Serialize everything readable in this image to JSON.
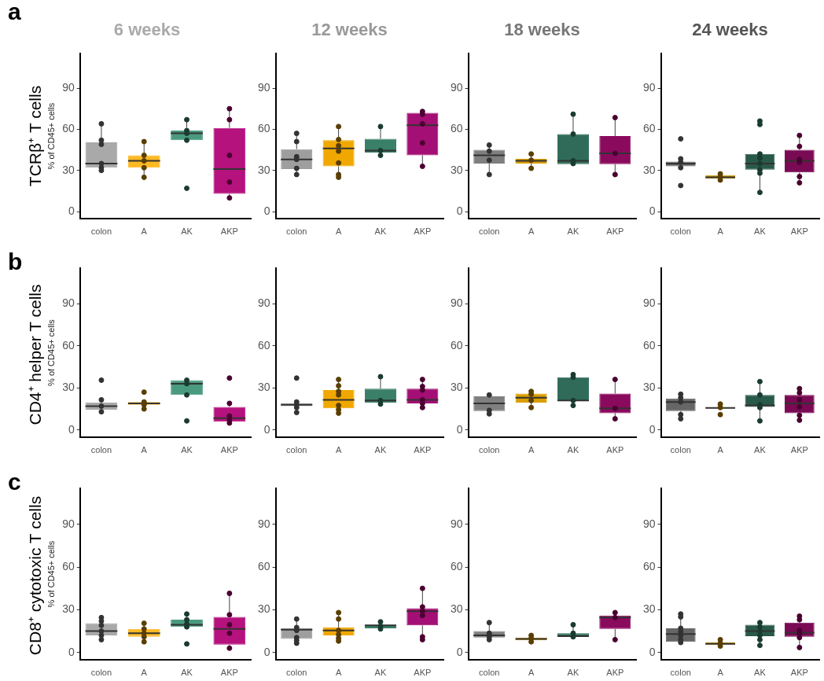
{
  "chart_data": [
    {
      "type": "box",
      "title": "6 weeks",
      "ylabel": "% of CD45+ cells",
      "annotations": [
        "a",
        "TCRβ⁺ T cells"
      ],
      "categories": [
        "colon",
        "A",
        "AK",
        "AKP"
      ],
      "colors": [
        "#a9a9a9",
        "#fdb924",
        "#4a9a80",
        "#b5127e"
      ],
      "ylim": [
        -5,
        115
      ],
      "yticks": [
        0,
        30,
        60,
        90
      ],
      "boxes": [
        {
          "low": 30,
          "q1": 32,
          "median": 35,
          "q3": 50.5,
          "high": 64
        },
        {
          "low": 25.5,
          "q1": 32,
          "median": 37,
          "q3": 41,
          "high": 51
        },
        {
          "low": 52,
          "q1": 52,
          "median": 57,
          "q3": 59,
          "high": 67
        },
        {
          "low": 10,
          "q1": 13,
          "median": 31,
          "q3": 61,
          "high": 75
        }
      ],
      "series": [
        {
          "type": "scatter",
          "color": "#333333",
          "x": [
            "colon",
            "colon",
            "colon",
            "colon",
            "colon",
            "colon"
          ],
          "values": [
            64,
            52,
            49,
            35,
            32,
            30
          ]
        },
        {
          "type": "scatter",
          "color": "#5a3e00",
          "x": [
            "A",
            "A",
            "A",
            "A",
            "A"
          ],
          "values": [
            51,
            41,
            37,
            32,
            25
          ]
        },
        {
          "type": "scatter",
          "color": "#1a3b30",
          "x": [
            "AK",
            "AK",
            "AK",
            "AK",
            "AK"
          ],
          "values": [
            67,
            59,
            57,
            52,
            17
          ]
        },
        {
          "type": "scatter",
          "color": "#4a0030",
          "x": [
            "AKP",
            "AKP",
            "AKP",
            "AKP",
            "AKP"
          ],
          "values": [
            75,
            67,
            41,
            21.5,
            10
          ]
        }
      ]
    },
    {
      "type": "box",
      "title": "12 weeks",
      "categories": [
        "colon",
        "A",
        "AK",
        "AKP"
      ],
      "colors": [
        "#9e9e9e",
        "#f0a800",
        "#3a7f68",
        "#a30f74"
      ],
      "ylim": [
        -5,
        115
      ],
      "yticks": [
        0,
        30,
        60,
        90
      ],
      "boxes": [
        {
          "low": 28,
          "q1": 31,
          "median": 38,
          "q3": 45.5,
          "high": 57
        },
        {
          "low": 25,
          "q1": 33,
          "median": 46,
          "q3": 52,
          "high": 62
        },
        {
          "low": 41,
          "q1": 43,
          "median": 44.5,
          "q3": 53,
          "high": 62
        },
        {
          "low": 33,
          "q1": 41,
          "median": 63,
          "q3": 72,
          "high": 73
        }
      ],
      "series": [
        {
          "type": "scatter",
          "color": "#333333",
          "x": [
            "colon",
            "colon",
            "colon",
            "colon",
            "colon",
            "colon"
          ],
          "values": [
            57,
            51,
            40,
            38,
            31.5,
            27
          ]
        },
        {
          "type": "scatter",
          "color": "#5a3e00",
          "x": [
            "A",
            "A",
            "A",
            "A",
            "A",
            "A",
            "A"
          ],
          "values": [
            62,
            52.5,
            48,
            44,
            35.5,
            27,
            25
          ]
        },
        {
          "type": "scatter",
          "color": "#1a3b30",
          "x": [
            "AK",
            "AK",
            "AK"
          ],
          "values": [
            62,
            44.5,
            41
          ]
        },
        {
          "type": "scatter",
          "color": "#4a0030",
          "x": [
            "AKP",
            "AKP",
            "AKP",
            "AKP",
            "AKP"
          ],
          "values": [
            73,
            71,
            64,
            50,
            33
          ]
        }
      ]
    },
    {
      "type": "box",
      "title": "18 weeks",
      "categories": [
        "colon",
        "A",
        "AK",
        "AKP"
      ],
      "colors": [
        "#7f7f7f",
        "#d99e00",
        "#2f6b58",
        "#8a0a5e"
      ],
      "ylim": [
        -5,
        115
      ],
      "yticks": [
        0,
        30,
        60,
        90
      ],
      "boxes": [
        {
          "low": 27,
          "q1": 35,
          "median": 41,
          "q3": 45,
          "high": 48
        },
        {
          "low": 32,
          "q1": 35,
          "median": 37,
          "q3": 38.5,
          "high": 42
        },
        {
          "low": 34.5,
          "q1": 34.5,
          "median": 37,
          "q3": 56.5,
          "high": 71
        },
        {
          "low": 27,
          "q1": 34.5,
          "median": 42.5,
          "q3": 55,
          "high": 68
        }
      ],
      "series": [
        {
          "type": "scatter",
          "color": "#333333",
          "x": [
            "colon",
            "colon",
            "colon",
            "colon"
          ],
          "values": [
            48.5,
            44,
            37.5,
            27
          ]
        },
        {
          "type": "scatter",
          "color": "#5a3e00",
          "x": [
            "A",
            "A",
            "A"
          ],
          "values": [
            42,
            37.5,
            31.5
          ]
        },
        {
          "type": "scatter",
          "color": "#1a3b30",
          "x": [
            "AK",
            "AK",
            "AK",
            "AK"
          ],
          "values": [
            71,
            56.5,
            37,
            35
          ]
        },
        {
          "type": "scatter",
          "color": "#4a0030",
          "x": [
            "AKP",
            "AKP",
            "AKP"
          ],
          "values": [
            68.5,
            42.5,
            27
          ]
        }
      ]
    },
    {
      "type": "box",
      "title": "24 weeks",
      "categories": [
        "colon",
        "A",
        "AK",
        "AKP"
      ],
      "colors": [
        "#666666",
        "#c79400",
        "#29594a",
        "#7a0a54"
      ],
      "ylim": [
        -5,
        115
      ],
      "yticks": [
        0,
        30,
        60,
        90
      ],
      "boxes": [
        {
          "low": 32,
          "q1": 33,
          "median": 35,
          "q3": 36.5,
          "high": 39
        },
        {
          "low": 23,
          "q1": 24,
          "median": 25,
          "q3": 26.5,
          "high": 28
        },
        {
          "low": 14,
          "q1": 30.5,
          "median": 35,
          "q3": 42,
          "high": 42
        },
        {
          "low": 21,
          "q1": 28.5,
          "median": 37,
          "q3": 45,
          "high": 55.5
        }
      ],
      "series": [
        {
          "type": "scatter",
          "color": "#333333",
          "x": [
            "colon",
            "colon",
            "colon",
            "colon",
            "colon"
          ],
          "values": [
            53,
            38.5,
            36,
            32,
            19
          ]
        },
        {
          "type": "scatter",
          "color": "#5a3e00",
          "x": [
            "A",
            "A",
            "A"
          ],
          "values": [
            27.5,
            25.5,
            23
          ]
        },
        {
          "type": "scatter",
          "color": "#1a3b30",
          "x": [
            "AK",
            "AK",
            "AK",
            "AK",
            "AK",
            "AK",
            "AK",
            "AK"
          ],
          "values": [
            66,
            63.5,
            42,
            39,
            35,
            30.5,
            28,
            14
          ]
        },
        {
          "type": "scatter",
          "color": "#4a0030",
          "x": [
            "AKP",
            "AKP",
            "AKP",
            "AKP",
            "AKP",
            "AKP"
          ],
          "values": [
            55.5,
            47.5,
            36,
            38,
            25.5,
            21
          ]
        }
      ]
    },
    {
      "type": "box",
      "ylabel": "% of CD45+ cells",
      "annotations": [
        "b",
        "CD4⁺ helper T cells"
      ],
      "categories": [
        "colon",
        "A",
        "AK",
        "AKP"
      ],
      "colors": [
        "#a9a9a9",
        "#fdb924",
        "#4a9a80",
        "#b5127e"
      ],
      "ylim": [
        -5,
        115
      ],
      "yticks": [
        0,
        30,
        60,
        90
      ],
      "boxes": [
        {
          "low": 13,
          "q1": 14.5,
          "median": 17,
          "q3": 19.5,
          "high": 21
        },
        {
          "low": 18,
          "q1": 18,
          "median": 19,
          "q3": 20,
          "high": 20
        },
        {
          "low": 25,
          "q1": 25,
          "median": 33,
          "q3": 35.5,
          "high": 35.5
        },
        {
          "low": 5,
          "q1": 6,
          "median": 8.5,
          "q3": 16.5,
          "high": 19
        }
      ],
      "series": [
        {
          "type": "scatter",
          "color": "#333333",
          "x": [
            "colon",
            "colon",
            "colon",
            "colon"
          ],
          "values": [
            35.5,
            21.5,
            17,
            13
          ]
        },
        {
          "type": "scatter",
          "color": "#5a3e00",
          "x": [
            "A",
            "A",
            "A",
            "A"
          ],
          "values": [
            27,
            20,
            18,
            15
          ]
        },
        {
          "type": "scatter",
          "color": "#1a3b30",
          "x": [
            "AK",
            "AK",
            "AK",
            "AK"
          ],
          "values": [
            35.5,
            33,
            25,
            6.5
          ]
        },
        {
          "type": "scatter",
          "color": "#4a0030",
          "x": [
            "AKP",
            "AKP",
            "AKP",
            "AKP",
            "AKP"
          ],
          "values": [
            37,
            19,
            10,
            7,
            5
          ]
        }
      ]
    },
    {
      "type": "box",
      "categories": [
        "colon",
        "A",
        "AK",
        "AKP"
      ],
      "colors": [
        "#9e9e9e",
        "#f0a800",
        "#3a7f68",
        "#a30f74"
      ],
      "ylim": [
        -5,
        115
      ],
      "yticks": [
        0,
        30,
        60,
        90
      ],
      "boxes": [
        {
          "low": 16,
          "q1": 17,
          "median": 18,
          "q3": 19,
          "high": 19.5
        },
        {
          "low": 12,
          "q1": 15.5,
          "median": 21.5,
          "q3": 28.5,
          "high": 35
        },
        {
          "low": 18,
          "q1": 19.5,
          "median": 21,
          "q3": 29.5,
          "high": 38
        },
        {
          "low": 16,
          "q1": 19,
          "median": 21.5,
          "q3": 29.5,
          "high": 36
        }
      ],
      "series": [
        {
          "type": "scatter",
          "color": "#333333",
          "x": [
            "colon",
            "colon",
            "colon",
            "colon",
            "colon"
          ],
          "values": [
            37,
            20,
            18,
            16,
            12.5
          ]
        },
        {
          "type": "scatter",
          "color": "#5a3e00",
          "x": [
            "A",
            "A",
            "A",
            "A",
            "A",
            "A",
            "A"
          ],
          "values": [
            36,
            31.5,
            27.5,
            25,
            17.5,
            14.5,
            12
          ]
        },
        {
          "type": "scatter",
          "color": "#1a3b30",
          "x": [
            "AK",
            "AK",
            "AK"
          ],
          "values": [
            38,
            21,
            18.5
          ]
        },
        {
          "type": "scatter",
          "color": "#4a0030",
          "x": [
            "AKP",
            "AKP",
            "AKP",
            "AKP",
            "AKP",
            "AKP"
          ],
          "values": [
            36,
            31,
            28.5,
            21.5,
            19,
            16
          ]
        }
      ]
    },
    {
      "type": "box",
      "categories": [
        "colon",
        "A",
        "AK",
        "AKP"
      ],
      "colors": [
        "#7f7f7f",
        "#d99e00",
        "#2f6b58",
        "#8a0a5e"
      ],
      "ylim": [
        -5,
        115
      ],
      "yticks": [
        0,
        30,
        60,
        90
      ],
      "boxes": [
        {
          "low": 12,
          "q1": 13.5,
          "median": 19,
          "q3": 24,
          "high": 25
        },
        {
          "low": 16,
          "q1": 19.5,
          "median": 23,
          "q3": 26,
          "high": 27.5
        },
        {
          "low": 18,
          "q1": 20.5,
          "median": 21,
          "q3": 37.5,
          "high": 39
        },
        {
          "low": 8,
          "q1": 12,
          "median": 15.5,
          "q3": 26,
          "high": 36
        }
      ],
      "series": [
        {
          "type": "scatter",
          "color": "#333333",
          "x": [
            "colon",
            "colon",
            "colon"
          ],
          "values": [
            25,
            14,
            11.5
          ]
        },
        {
          "type": "scatter",
          "color": "#5a3e00",
          "x": [
            "A",
            "A",
            "A",
            "A"
          ],
          "values": [
            27.5,
            25.5,
            21,
            16
          ]
        },
        {
          "type": "scatter",
          "color": "#1a3b30",
          "x": [
            "AK",
            "AK",
            "AK",
            "AK"
          ],
          "values": [
            39.5,
            37.5,
            21,
            17.5
          ]
        },
        {
          "type": "scatter",
          "color": "#4a0030",
          "x": [
            "AKP",
            "AKP",
            "AKP"
          ],
          "values": [
            36,
            15.5,
            8
          ]
        }
      ]
    },
    {
      "type": "box",
      "categories": [
        "colon",
        "A",
        "AK",
        "AKP"
      ],
      "colors": [
        "#666666",
        "#c79400",
        "#29594a",
        "#7a0a54"
      ],
      "ylim": [
        -5,
        115
      ],
      "yticks": [
        0,
        30,
        60,
        90
      ],
      "boxes": [
        {
          "low": 8,
          "q1": 13.5,
          "median": 20,
          "q3": 22.5,
          "high": 25.5
        },
        {
          "low": 15.5,
          "q1": 15.5,
          "median": 15.7,
          "q3": 16.3,
          "high": 16.3
        },
        {
          "low": 6.5,
          "q1": 16.5,
          "median": 17.5,
          "q3": 25,
          "high": 34.5
        },
        {
          "low": 7,
          "q1": 12,
          "median": 19,
          "q3": 25,
          "high": 29
        }
      ],
      "series": [
        {
          "type": "scatter",
          "color": "#333333",
          "x": [
            "colon",
            "colon",
            "colon",
            "colon",
            "colon"
          ],
          "values": [
            25.5,
            23,
            20,
            11,
            8
          ]
        },
        {
          "type": "scatter",
          "color": "#5a3e00",
          "x": [
            "A",
            "A",
            "A"
          ],
          "values": [
            18.5,
            16,
            11
          ]
        },
        {
          "type": "scatter",
          "color": "#1a3b30",
          "x": [
            "AK",
            "AK",
            "AK",
            "AK",
            "AK"
          ],
          "values": [
            34.5,
            25,
            18,
            16,
            6.5
          ]
        },
        {
          "type": "scatter",
          "color": "#4a0030",
          "x": [
            "AKP",
            "AKP",
            "AKP",
            "AKP",
            "AKP",
            "AKP"
          ],
          "values": [
            29.5,
            26.5,
            21.5,
            16.5,
            10.5,
            7
          ]
        }
      ]
    },
    {
      "type": "box",
      "ylabel": "% of CD45+ cells",
      "annotations": [
        "c",
        "CD8⁺ cytotoxic T cells"
      ],
      "categories": [
        "colon",
        "A",
        "AK",
        "AKP"
      ],
      "colors": [
        "#a9a9a9",
        "#fdb924",
        "#4a9a80",
        "#b5127e"
      ],
      "ylim": [
        -5,
        115
      ],
      "yticks": [
        0,
        30,
        60,
        90
      ],
      "boxes": [
        {
          "low": 9,
          "q1": 12,
          "median": 15,
          "q3": 20.5,
          "high": 24.5
        },
        {
          "low": 7.5,
          "q1": 11,
          "median": 13.5,
          "q3": 16.5,
          "high": 20.5
        },
        {
          "low": 18,
          "q1": 18,
          "median": 19.5,
          "q3": 23,
          "high": 27
        },
        {
          "low": 2,
          "q1": 5.5,
          "median": 16.5,
          "q3": 25,
          "high": 42
        }
      ],
      "series": [
        {
          "type": "scatter",
          "color": "#333333",
          "x": [
            "colon",
            "colon",
            "colon",
            "colon",
            "colon",
            "colon"
          ],
          "values": [
            24.5,
            22,
            19,
            15,
            12,
            9
          ]
        },
        {
          "type": "scatter",
          "color": "#5a3e00",
          "x": [
            "A",
            "A",
            "A",
            "A",
            "A"
          ],
          "values": [
            20.5,
            16.5,
            13.5,
            11,
            7.5
          ]
        },
        {
          "type": "scatter",
          "color": "#1a3b30",
          "x": [
            "AK",
            "AK",
            "AK",
            "AK",
            "AK"
          ],
          "values": [
            27,
            23,
            20,
            18,
            6
          ]
        },
        {
          "type": "scatter",
          "color": "#4a0030",
          "x": [
            "AKP",
            "AKP",
            "AKP",
            "AKP",
            "AKP"
          ],
          "values": [
            41.5,
            26.5,
            19.5,
            13.5,
            3
          ]
        }
      ]
    },
    {
      "type": "box",
      "categories": [
        "colon",
        "A",
        "AK",
        "AKP"
      ],
      "colors": [
        "#9e9e9e",
        "#f0a800",
        "#3a7f68",
        "#a30f74"
      ],
      "ylim": [
        -5,
        115
      ],
      "yticks": [
        0,
        30,
        60,
        90
      ],
      "boxes": [
        {
          "low": 6.5,
          "q1": 9.5,
          "median": 16,
          "q3": 17,
          "high": 23.5
        },
        {
          "low": 9,
          "q1": 12,
          "median": 15.5,
          "q3": 17.5,
          "high": 28
        },
        {
          "low": 17,
          "q1": 17,
          "median": 19,
          "q3": 19.5,
          "high": 21
        },
        {
          "low": 9.5,
          "q1": 19,
          "median": 29,
          "q3": 31,
          "high": 45
        }
      ],
      "series": [
        {
          "type": "scatter",
          "color": "#333333",
          "x": [
            "colon",
            "colon",
            "colon",
            "colon",
            "colon",
            "colon"
          ],
          "values": [
            23.5,
            17.5,
            15.5,
            10.5,
            8.5,
            6.5
          ]
        },
        {
          "type": "scatter",
          "color": "#5a3e00",
          "x": [
            "A",
            "A",
            "A",
            "A",
            "A",
            "A"
          ],
          "values": [
            28,
            23.5,
            15.5,
            12.5,
            10,
            8
          ]
        },
        {
          "type": "scatter",
          "color": "#1a3b30",
          "x": [
            "AK",
            "AK",
            "AK"
          ],
          "values": [
            21.5,
            18.5,
            16.5
          ]
        },
        {
          "type": "scatter",
          "color": "#4a0030",
          "x": [
            "AKP",
            "AKP",
            "AKP",
            "AKP",
            "AKP",
            "AKP"
          ],
          "values": [
            45,
            32,
            29,
            26,
            11,
            9
          ]
        }
      ]
    },
    {
      "type": "box",
      "categories": [
        "colon",
        "A",
        "AK",
        "AKP"
      ],
      "colors": [
        "#7f7f7f",
        "#d99e00",
        "#2f6b58",
        "#8a0a5e"
      ],
      "ylim": [
        -5,
        115
      ],
      "yticks": [
        0,
        30,
        60,
        90
      ],
      "boxes": [
        {
          "low": 9.5,
          "q1": 10.5,
          "median": 12,
          "q3": 15,
          "high": 21
        },
        {
          "low": 7.5,
          "q1": 8.5,
          "median": 9.5,
          "q3": 10.5,
          "high": 12
        },
        {
          "low": 11,
          "q1": 11,
          "median": 11.5,
          "q3": 13.5,
          "high": 19.5
        },
        {
          "low": 9,
          "q1": 16.5,
          "median": 24.5,
          "q3": 26,
          "high": 28
        }
      ],
      "series": [
        {
          "type": "scatter",
          "color": "#333333",
          "x": [
            "colon",
            "colon",
            "colon",
            "colon"
          ],
          "values": [
            21,
            13.5,
            11,
            9
          ]
        },
        {
          "type": "scatter",
          "color": "#5a3e00",
          "x": [
            "A",
            "A",
            "A"
          ],
          "values": [
            12,
            10,
            7.5
          ]
        },
        {
          "type": "scatter",
          "color": "#1a3b30",
          "x": [
            "AK",
            "AK",
            "AK"
          ],
          "values": [
            19.5,
            13.5,
            11
          ]
        },
        {
          "type": "scatter",
          "color": "#4a0030",
          "x": [
            "AKP",
            "AKP",
            "AKP"
          ],
          "values": [
            28,
            24.5,
            9
          ]
        }
      ]
    },
    {
      "type": "box",
      "categories": [
        "colon",
        "A",
        "AK",
        "AKP"
      ],
      "colors": [
        "#666666",
        "#c79400",
        "#29594a",
        "#7a0a54"
      ],
      "ylim": [
        -5,
        115
      ],
      "yticks": [
        0,
        30,
        60,
        90
      ],
      "boxes": [
        {
          "low": 6,
          "q1": 7.5,
          "median": 13,
          "q3": 17,
          "high": 26.5
        },
        {
          "low": 4,
          "q1": 5.5,
          "median": 6,
          "q3": 7,
          "high": 8.5
        },
        {
          "low": 5,
          "q1": 11.5,
          "median": 15,
          "q3": 19.5,
          "high": 21
        },
        {
          "low": 3,
          "q1": 11,
          "median": 14,
          "q3": 21,
          "high": 25.5
        }
      ],
      "series": [
        {
          "type": "scatter",
          "color": "#333333",
          "x": [
            "colon",
            "colon",
            "colon",
            "colon",
            "colon",
            "colon",
            "colon"
          ],
          "values": [
            27,
            25,
            17,
            14.5,
            12,
            9,
            7
          ]
        },
        {
          "type": "scatter",
          "color": "#5a3e00",
          "x": [
            "A",
            "A",
            "A"
          ],
          "values": [
            9,
            6.5,
            4.5
          ]
        },
        {
          "type": "scatter",
          "color": "#1a3b30",
          "x": [
            "AK",
            "AK",
            "AK",
            "AK",
            "AK",
            "AK"
          ],
          "values": [
            21,
            18,
            15,
            12,
            9,
            5
          ]
        },
        {
          "type": "scatter",
          "color": "#4a0030",
          "x": [
            "AKP",
            "AKP",
            "AKP",
            "AKP",
            "AKP",
            "AKP"
          ],
          "values": [
            25.5,
            23,
            15.5,
            13,
            10.5,
            3.5
          ]
        }
      ]
    }
  ]
}
